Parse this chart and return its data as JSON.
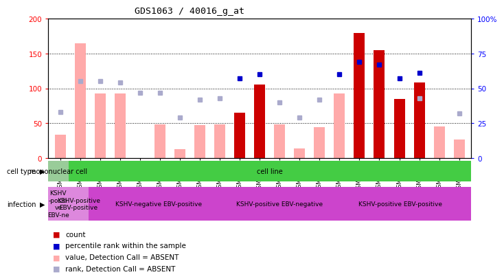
{
  "title": "GDS1063 / 40016_g_at",
  "samples": [
    "GSM38791",
    "GSM38789",
    "GSM38790",
    "GSM38802",
    "GSM38803",
    "GSM38804",
    "GSM38805",
    "GSM38808",
    "GSM38809",
    "GSM38796",
    "GSM38797",
    "GSM38800",
    "GSM38801",
    "GSM38806",
    "GSM38807",
    "GSM38792",
    "GSM38793",
    "GSM38794",
    "GSM38795",
    "GSM38798",
    "GSM38799"
  ],
  "count_values": [
    null,
    null,
    null,
    null,
    null,
    null,
    null,
    null,
    null,
    65,
    105,
    null,
    null,
    null,
    null,
    180,
    155,
    85,
    108,
    null,
    null
  ],
  "absent_values": [
    33,
    165,
    93,
    93,
    null,
    48,
    13,
    47,
    48,
    null,
    null,
    48,
    14,
    44,
    93,
    null,
    null,
    null,
    null,
    45,
    26
  ],
  "percentile_rank": [
    null,
    null,
    null,
    null,
    null,
    null,
    null,
    null,
    null,
    57,
    60,
    null,
    null,
    null,
    60,
    69,
    67,
    57,
    61,
    null,
    null
  ],
  "absent_rank": [
    33,
    55,
    55,
    54,
    47,
    47,
    29,
    42,
    43,
    null,
    null,
    40,
    29,
    42,
    null,
    null,
    null,
    null,
    43,
    null,
    32
  ],
  "ylim_left": [
    0,
    200
  ],
  "ylim_right": [
    0,
    100
  ],
  "yticks_left": [
    0,
    50,
    100,
    150,
    200
  ],
  "yticks_right": [
    0,
    25,
    50,
    75,
    100
  ],
  "bar_color_count": "#cc0000",
  "bar_color_absent": "#ffaaaa",
  "dot_color_rank": "#0000cc",
  "dot_color_absent_rank": "#aaaacc",
  "bg_color": "#ffffff",
  "cell_regions": [
    {
      "start": 0,
      "end": 1,
      "text": "mononuclear cell",
      "color": "#99cc99"
    },
    {
      "start": 1,
      "end": 21,
      "text": "cell line",
      "color": "#44cc44"
    }
  ],
  "inf_regions": [
    {
      "start": 0,
      "end": 1,
      "text": "KSHV\n-positi\nve\nEBV-ne",
      "color": "#dd88dd"
    },
    {
      "start": 1,
      "end": 2,
      "text": "KSHV-positive\nEBV-positive",
      "color": "#dd88dd"
    },
    {
      "start": 2,
      "end": 9,
      "text": "KSHV-negative EBV-positive",
      "color": "#cc44cc"
    },
    {
      "start": 9,
      "end": 14,
      "text": "KSHV-positive EBV-negative",
      "color": "#cc44cc"
    },
    {
      "start": 14,
      "end": 21,
      "text": "KSHV-positive EBV-positive",
      "color": "#cc44cc"
    }
  ],
  "legend": [
    {
      "color": "#cc0000",
      "label": "count"
    },
    {
      "color": "#0000cc",
      "label": "percentile rank within the sample"
    },
    {
      "color": "#ffaaaa",
      "label": "value, Detection Call = ABSENT"
    },
    {
      "color": "#aaaacc",
      "label": "rank, Detection Call = ABSENT"
    }
  ]
}
